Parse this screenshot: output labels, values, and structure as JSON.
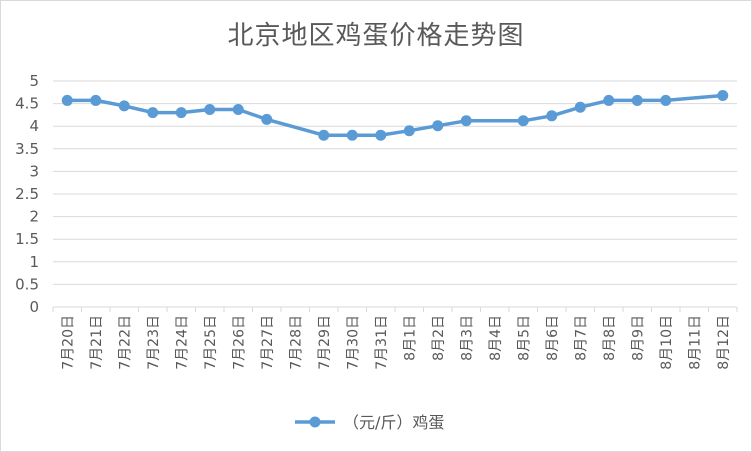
{
  "chart_data": {
    "type": "line",
    "title": "北京地区鸡蛋价格走势图",
    "xlabel": "",
    "ylabel": "",
    "ylim": [
      0,
      5
    ],
    "yticks": [
      "0",
      "0.5",
      "1",
      "1.5",
      "2",
      "2.5",
      "3",
      "3.5",
      "4",
      "4.5",
      "5"
    ],
    "grid": true,
    "legend_position": "bottom",
    "categories": [
      "7月20日",
      "7月21日",
      "7月22日",
      "7月23日",
      "7月24日",
      "7月25日",
      "7月26日",
      "7月27日",
      "7月28日",
      "7月29日",
      "7月30日",
      "7月31日",
      "8月1日",
      "8月2日",
      "8月3日",
      "8月4日",
      "8月5日",
      "8月6日",
      "8月7日",
      "8月8日",
      "8月9日",
      "8月10日",
      "8月11日",
      "8月12日"
    ],
    "series": [
      {
        "name": "（元/斤）鸡蛋",
        "color": "#5b9bd5",
        "values": [
          4.57,
          4.57,
          4.45,
          4.3,
          4.3,
          4.37,
          4.37,
          4.15,
          null,
          3.8,
          3.8,
          3.8,
          3.9,
          4.01,
          4.12,
          null,
          4.12,
          4.23,
          4.42,
          4.57,
          4.57,
          4.57,
          null,
          4.68
        ]
      }
    ]
  }
}
